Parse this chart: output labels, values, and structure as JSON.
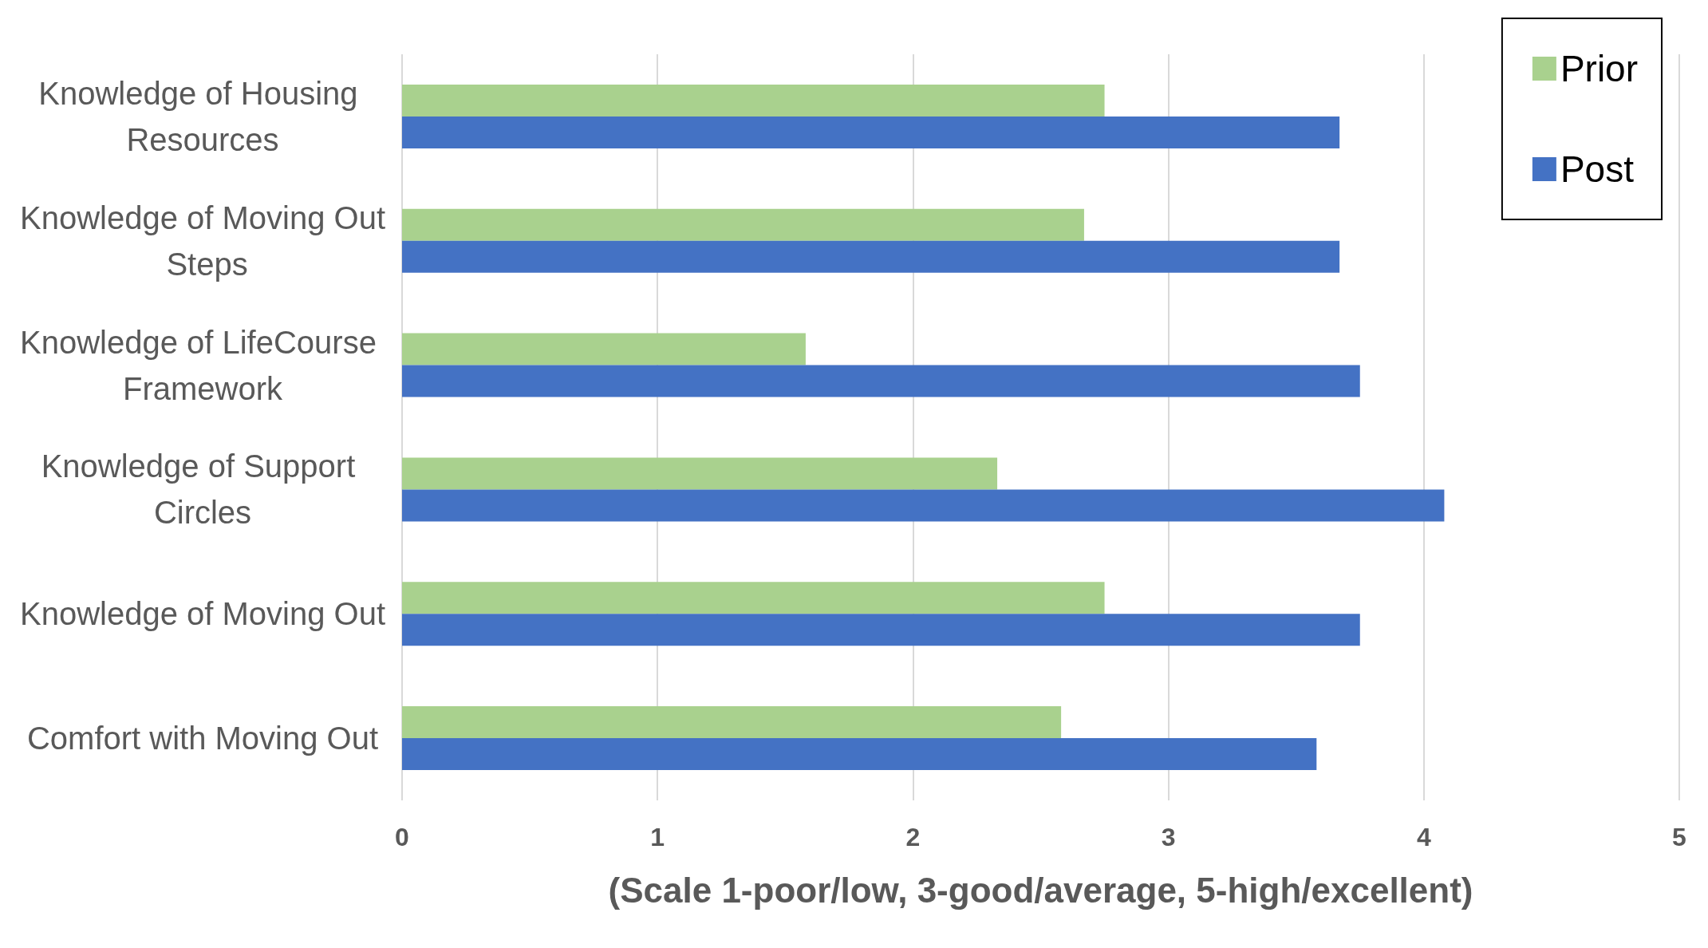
{
  "chart_data": {
    "type": "bar",
    "orientation": "horizontal",
    "xlabel": "(Scale 1-poor/low, 3-good/average, 5-high/excellent)",
    "categories": [
      "Knowledge of Housing Resources",
      "Knowledge of Moving Out Steps",
      "Knowledge of LifeCourse Framework",
      "Knowledge of Support Circles",
      "Knowledge of Moving Out",
      "Comfort with Moving Out"
    ],
    "series": [
      {
        "name": "Prior",
        "color": "#a9d18e",
        "values": [
          2.75,
          2.67,
          1.58,
          2.33,
          2.75,
          2.58
        ]
      },
      {
        "name": "Post",
        "color": "#4472c4",
        "values": [
          3.67,
          3.67,
          3.75,
          4.08,
          3.75,
          3.58
        ]
      }
    ],
    "xlim": [
      0,
      5
    ],
    "xticks": [
      0,
      1,
      2,
      3,
      4,
      5
    ],
    "grid": "x",
    "legend": "top right"
  }
}
